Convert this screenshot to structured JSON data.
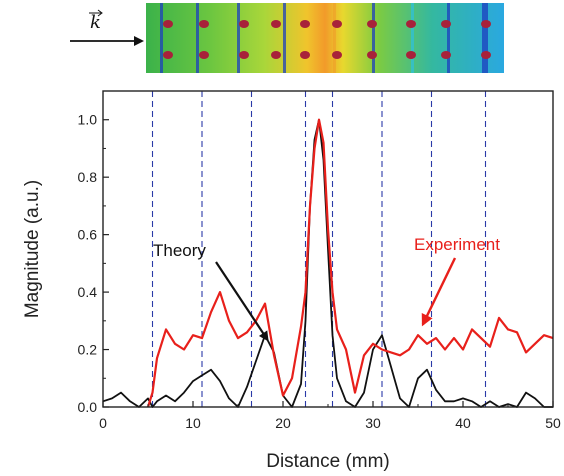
{
  "chart_data": {
    "type": "line",
    "title": "",
    "xlabel": "Distance (mm)",
    "ylabel": "Magnitude (a.u.)",
    "xlim": [
      0,
      50
    ],
    "ylim": [
      0,
      1.1
    ],
    "xticks": [
      0,
      10,
      20,
      30,
      40,
      50
    ],
    "xtick_labels": [
      "0",
      "10",
      "20",
      "30",
      "40",
      "50"
    ],
    "yticks": [
      0.0,
      0.2,
      0.4,
      0.6,
      0.8,
      1.0
    ],
    "ytick_labels": [
      "0.0",
      "0.2",
      "0.4",
      "0.6",
      "0.8",
      "1.0"
    ],
    "grid": false,
    "vertical_dashed_lines_x": [
      5.5,
      11,
      16.5,
      22.5,
      25.5,
      31,
      36.5,
      42.5
    ],
    "annotations": [
      {
        "text": "Theory",
        "color": "#111111",
        "points_to": {
          "x": 18.5,
          "y": 0.22
        }
      },
      {
        "text": "Experiment",
        "color": "#e8201b",
        "points_to": {
          "x": 35.2,
          "y": 0.28
        }
      }
    ],
    "series": [
      {
        "name": "Theory",
        "color": "#111111",
        "x": [
          0,
          1,
          2,
          3,
          4,
          5,
          5.5,
          6,
          7,
          8,
          9,
          10,
          11,
          12,
          13,
          14,
          15,
          16,
          17,
          18,
          19,
          20,
          21,
          22,
          22.5,
          23,
          23.5,
          24,
          24.5,
          25,
          25.5,
          26,
          27,
          28,
          29,
          30,
          31,
          32,
          33,
          34,
          35,
          36,
          37,
          38,
          39,
          40,
          41,
          42,
          43,
          44,
          45,
          46,
          47,
          48,
          49,
          50
        ],
        "y": [
          0.02,
          0.03,
          0.05,
          0.02,
          0.0,
          0.03,
          0.0,
          0.02,
          0.04,
          0.02,
          0.05,
          0.09,
          0.11,
          0.13,
          0.09,
          0.03,
          0.0,
          0.07,
          0.16,
          0.25,
          0.19,
          0.04,
          0.0,
          0.08,
          0.3,
          0.7,
          0.93,
          1.0,
          0.86,
          0.55,
          0.25,
          0.1,
          0.02,
          0.0,
          0.05,
          0.2,
          0.25,
          0.14,
          0.03,
          0.0,
          0.1,
          0.13,
          0.06,
          0.02,
          0.02,
          0.03,
          0.02,
          0.0,
          0.02,
          0.0,
          0.01,
          0.0,
          0.05,
          0.03,
          0.0,
          0.0
        ]
      },
      {
        "name": "Experiment",
        "color": "#e8201b",
        "x": [
          5,
          5.5,
          6,
          7,
          8,
          9,
          10,
          11,
          12,
          13,
          14,
          15,
          16,
          17,
          18,
          19,
          20,
          21,
          22,
          22.5,
          23,
          23.5,
          24,
          24.5,
          25,
          25.5,
          26,
          27,
          28,
          29,
          30,
          31,
          32,
          33,
          34,
          35,
          36,
          37,
          38,
          39,
          40,
          41,
          42,
          43,
          44,
          45,
          46,
          47,
          48,
          49,
          50
        ],
        "y": [
          0.0,
          0.05,
          0.17,
          0.27,
          0.22,
          0.2,
          0.25,
          0.24,
          0.33,
          0.4,
          0.3,
          0.24,
          0.26,
          0.3,
          0.36,
          0.18,
          0.04,
          0.1,
          0.28,
          0.4,
          0.7,
          0.9,
          1.0,
          0.92,
          0.62,
          0.4,
          0.27,
          0.2,
          0.05,
          0.18,
          0.22,
          0.2,
          0.19,
          0.18,
          0.2,
          0.25,
          0.22,
          0.24,
          0.2,
          0.24,
          0.2,
          0.27,
          0.24,
          0.21,
          0.31,
          0.27,
          0.26,
          0.19,
          0.22,
          0.25,
          0.24
        ]
      }
    ]
  },
  "inset": {
    "label": "k",
    "colors": {
      "green": "#4fb84a",
      "yellow": "#e8d82e",
      "orange": "#f19a2a",
      "cyan": "#2fc0d8",
      "blue": "#1c3fbf",
      "dot": "#a8213a"
    }
  }
}
